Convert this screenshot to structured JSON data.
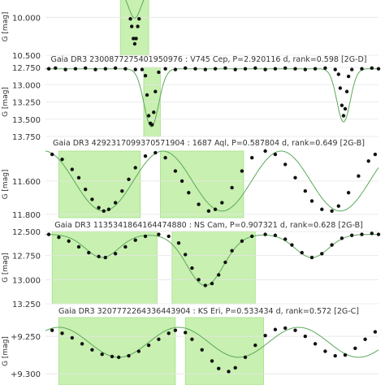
{
  "colors": {
    "shade": "#c8f0b0",
    "shade_stroke": "#a6e08a",
    "model": "#5ba85b",
    "point": "#111111",
    "grid": "#e6e6e6"
  },
  "chart_data": [
    {
      "type": "scatter",
      "title": "",
      "ylabel": "G [mag]",
      "ylim": [
        9.75,
        10.5
      ],
      "yticks": [
        "10.000",
        "10.500"
      ],
      "ytick_values": [
        10.0,
        10.5
      ],
      "model": "eclipse",
      "eclipses": [
        {
          "center": 0.268,
          "width": 0.018,
          "depth": 0.35
        }
      ],
      "baseline": 9.66,
      "shaded": [
        [
          0.225,
          0.31
        ]
      ],
      "points": [
        [
          0.255,
          10.02
        ],
        [
          0.259,
          10.12
        ],
        [
          0.264,
          10.28
        ],
        [
          0.268,
          10.35
        ],
        [
          0.272,
          10.28
        ],
        [
          0.277,
          10.12
        ],
        [
          0.281,
          10.02
        ]
      ]
    },
    {
      "type": "scatter",
      "title": "Gaia DR3 2300877275401950976 : V745 Cep, P=2.920116 d, rank=0.598 [2G-D]",
      "ylabel": "G [mag]",
      "ylim": [
        12.75,
        13.75
      ],
      "yticks": [
        "12.750",
        "13.000",
        "13.250",
        "13.500",
        "13.750"
      ],
      "ytick_values": [
        12.75,
        13.0,
        13.25,
        13.5,
        13.75
      ],
      "model": "eclipse",
      "baseline": 12.77,
      "eclipses": [
        {
          "center": 0.318,
          "width": 0.022,
          "depth": 0.84
        },
        {
          "center": 0.895,
          "width": 0.02,
          "depth": 0.77
        }
      ],
      "shaded": [
        [
          0.295,
          0.345
        ]
      ],
      "points": [
        [
          0.01,
          12.77
        ],
        [
          0.03,
          12.76
        ],
        [
          0.06,
          12.78
        ],
        [
          0.09,
          12.77
        ],
        [
          0.12,
          12.76
        ],
        [
          0.15,
          12.78
        ],
        [
          0.18,
          12.77
        ],
        [
          0.21,
          12.76
        ],
        [
          0.24,
          12.77
        ],
        [
          0.27,
          12.78
        ],
        [
          0.29,
          12.78
        ],
        [
          0.3,
          12.87
        ],
        [
          0.305,
          13.15
        ],
        [
          0.31,
          13.45
        ],
        [
          0.315,
          13.56
        ],
        [
          0.32,
          13.58
        ],
        [
          0.325,
          13.4
        ],
        [
          0.33,
          13.1
        ],
        [
          0.34,
          12.82
        ],
        [
          0.36,
          12.77
        ],
        [
          0.39,
          12.78
        ],
        [
          0.42,
          12.76
        ],
        [
          0.45,
          12.77
        ],
        [
          0.48,
          12.78
        ],
        [
          0.51,
          12.77
        ],
        [
          0.54,
          12.76
        ],
        [
          0.57,
          12.78
        ],
        [
          0.6,
          12.77
        ],
        [
          0.63,
          12.76
        ],
        [
          0.66,
          12.78
        ],
        [
          0.69,
          12.77
        ],
        [
          0.72,
          12.76
        ],
        [
          0.75,
          12.77
        ],
        [
          0.78,
          12.78
        ],
        [
          0.81,
          12.77
        ],
        [
          0.84,
          12.76
        ],
        [
          0.87,
          12.78
        ],
        [
          0.88,
          12.85
        ],
        [
          0.885,
          13.05
        ],
        [
          0.89,
          13.3
        ],
        [
          0.895,
          13.45
        ],
        [
          0.9,
          13.35
        ],
        [
          0.905,
          13.1
        ],
        [
          0.91,
          12.88
        ],
        [
          0.92,
          12.78
        ],
        [
          0.95,
          12.77
        ],
        [
          0.98,
          12.76
        ],
        [
          1.0,
          12.77
        ]
      ]
    },
    {
      "type": "scatter",
      "title": "Gaia DR3 4292317099370571904 : 1687 Aql, P=0.587804 d, rank=0.649 [2G-B]",
      "ylabel": "G [mag]",
      "ylim": [
        11.42,
        11.82
      ],
      "yticks": [
        "11.600",
        "11.800"
      ],
      "ytick_values": [
        11.6,
        11.8
      ],
      "model": "sine",
      "mean": 11.6,
      "amplitude": 0.18,
      "period_frac": 0.355,
      "minimum_at": 0.175,
      "shaded": [
        [
          0.04,
          0.285
        ],
        [
          0.345,
          0.595
        ]
      ],
      "points": [
        [
          0.02,
          11.44
        ],
        [
          0.05,
          11.47
        ],
        [
          0.08,
          11.53
        ],
        [
          0.1,
          11.58
        ],
        [
          0.12,
          11.65
        ],
        [
          0.14,
          11.71
        ],
        [
          0.16,
          11.76
        ],
        [
          0.175,
          11.78
        ],
        [
          0.19,
          11.77
        ],
        [
          0.21,
          11.73
        ],
        [
          0.23,
          11.66
        ],
        [
          0.25,
          11.59
        ],
        [
          0.27,
          11.52
        ],
        [
          0.3,
          11.45
        ],
        [
          0.33,
          11.43
        ],
        [
          0.36,
          11.46
        ],
        [
          0.39,
          11.54
        ],
        [
          0.41,
          11.6
        ],
        [
          0.43,
          11.67
        ],
        [
          0.46,
          11.74
        ],
        [
          0.49,
          11.78
        ],
        [
          0.51,
          11.77
        ],
        [
          0.53,
          11.73
        ],
        [
          0.56,
          11.64
        ],
        [
          0.59,
          11.54
        ],
        [
          0.62,
          11.46
        ],
        [
          0.66,
          11.42
        ],
        [
          0.69,
          11.44
        ],
        [
          0.72,
          11.5
        ],
        [
          0.75,
          11.58
        ],
        [
          0.78,
          11.66
        ],
        [
          0.8,
          11.72
        ],
        [
          0.83,
          11.77
        ],
        [
          0.86,
          11.78
        ],
        [
          0.88,
          11.75
        ],
        [
          0.91,
          11.67
        ],
        [
          0.94,
          11.57
        ],
        [
          0.97,
          11.48
        ],
        [
          0.99,
          11.44
        ]
      ]
    },
    {
      "type": "scatter",
      "title": "Gaia DR3 1135341864164474880 : NS Cam, P=0.907321 d, rank=0.628 [2G-B]",
      "ylabel": "G [mag]",
      "ylim": [
        12.5,
        13.25
      ],
      "yticks": [
        "12.500",
        "12.750",
        "13.000",
        "13.250"
      ],
      "ytick_values": [
        12.5,
        12.75,
        13.0,
        13.25
      ],
      "model": "eclipse",
      "baseline": 12.53,
      "eclipses": [
        {
          "center": 0.17,
          "width": 0.05,
          "depth": 0.24
        },
        {
          "center": 0.48,
          "width": 0.055,
          "depth": 0.53
        },
        {
          "center": 0.8,
          "width": 0.05,
          "depth": 0.24
        }
      ],
      "shaded": [
        [
          0.02,
          0.335
        ],
        [
          0.38,
          0.63
        ]
      ],
      "points": [
        [
          0.01,
          12.53
        ],
        [
          0.04,
          12.56
        ],
        [
          0.07,
          12.6
        ],
        [
          0.1,
          12.66
        ],
        [
          0.13,
          12.72
        ],
        [
          0.16,
          12.76
        ],
        [
          0.18,
          12.77
        ],
        [
          0.21,
          12.73
        ],
        [
          0.24,
          12.66
        ],
        [
          0.27,
          12.59
        ],
        [
          0.3,
          12.55
        ],
        [
          0.34,
          12.53
        ],
        [
          0.37,
          12.55
        ],
        [
          0.4,
          12.62
        ],
        [
          0.42,
          12.74
        ],
        [
          0.44,
          12.88
        ],
        [
          0.46,
          13.0
        ],
        [
          0.48,
          13.06
        ],
        [
          0.5,
          13.04
        ],
        [
          0.52,
          12.95
        ],
        [
          0.54,
          12.82
        ],
        [
          0.56,
          12.7
        ],
        [
          0.59,
          12.6
        ],
        [
          0.62,
          12.55
        ],
        [
          0.66,
          12.53
        ],
        [
          0.69,
          12.54
        ],
        [
          0.72,
          12.58
        ],
        [
          0.74,
          12.64
        ],
        [
          0.77,
          12.72
        ],
        [
          0.8,
          12.77
        ],
        [
          0.83,
          12.73
        ],
        [
          0.86,
          12.64
        ],
        [
          0.89,
          12.57
        ],
        [
          0.92,
          12.54
        ],
        [
          0.95,
          12.53
        ],
        [
          0.98,
          12.52
        ],
        [
          1.0,
          12.53
        ]
      ]
    },
    {
      "type": "scatter",
      "title": "Gaia DR3 3207772264336443904 : KS Eri, P=0.533434 d, rank=0.572 [2G-C]",
      "ylabel": "G [mag]",
      "ylim": [
        9.225,
        9.315
      ],
      "yticks": [
        "+9.250",
        "+9.300"
      ],
      "ytick_values": [
        9.25,
        9.3
      ],
      "model": "sine",
      "mean": 9.258,
      "amplitude": 0.02,
      "period_frac": 0.36,
      "minimum_at": 0.22,
      "shaded": [
        [
          0.04,
          0.39
        ],
        [
          0.42,
          0.655
        ]
      ],
      "points": [
        [
          0.02,
          9.242
        ],
        [
          0.05,
          9.246
        ],
        [
          0.08,
          9.252
        ],
        [
          0.11,
          9.26
        ],
        [
          0.14,
          9.268
        ],
        [
          0.17,
          9.274
        ],
        [
          0.2,
          9.277
        ],
        [
          0.22,
          9.278
        ],
        [
          0.25,
          9.276
        ],
        [
          0.28,
          9.27
        ],
        [
          0.31,
          9.262
        ],
        [
          0.34,
          9.254
        ],
        [
          0.37,
          9.246
        ],
        [
          0.39,
          9.242
        ],
        [
          0.42,
          9.245
        ],
        [
          0.44,
          9.254
        ],
        [
          0.47,
          9.268
        ],
        [
          0.5,
          9.283
        ],
        [
          0.52,
          9.293
        ],
        [
          0.55,
          9.297
        ],
        [
          0.57,
          9.292
        ],
        [
          0.6,
          9.278
        ],
        [
          0.63,
          9.262
        ],
        [
          0.66,
          9.249
        ],
        [
          0.69,
          9.241
        ],
        [
          0.72,
          9.239
        ],
        [
          0.75,
          9.242
        ],
        [
          0.78,
          9.25
        ],
        [
          0.81,
          9.26
        ],
        [
          0.84,
          9.27
        ],
        [
          0.87,
          9.276
        ],
        [
          0.9,
          9.275
        ],
        [
          0.93,
          9.266
        ],
        [
          0.96,
          9.254
        ],
        [
          0.99,
          9.244
        ]
      ]
    }
  ]
}
